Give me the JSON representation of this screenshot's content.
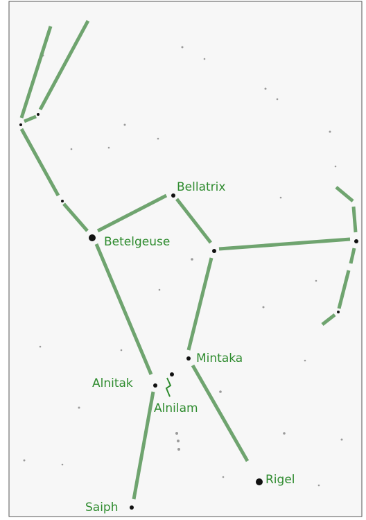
{
  "stars": [
    {
      "label": "Bellatrix"
    },
    {
      "label": "Betelgeuse"
    },
    {
      "label": "Mintaka"
    },
    {
      "label": "Alnitak"
    },
    {
      "label": "Alnilam"
    },
    {
      "label": "Rigel"
    },
    {
      "label": "Saiph"
    }
  ]
}
